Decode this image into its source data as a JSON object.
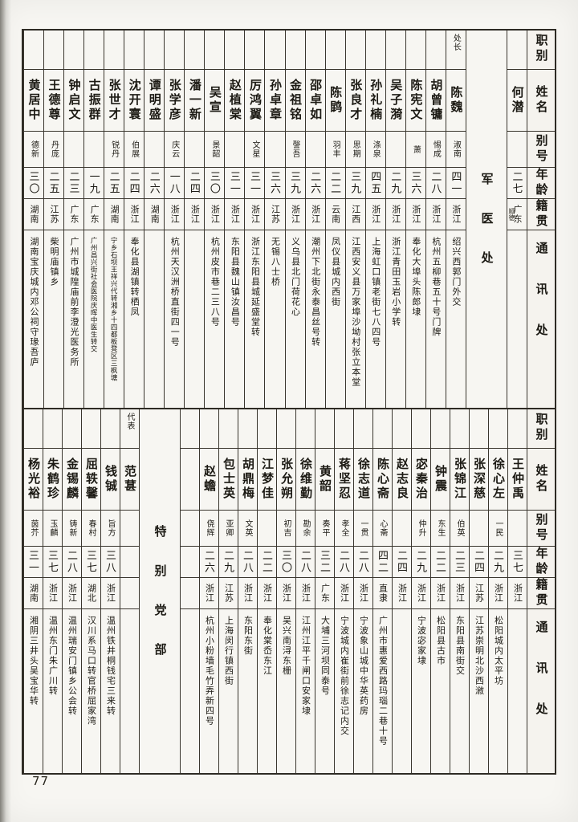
{
  "page": {
    "number": "77"
  },
  "header_labels": [
    "职别",
    "姓名",
    "别号",
    "年龄",
    "籍贯",
    "通讯处"
  ],
  "tables": [
    {
      "name": "top",
      "columns": [
        {
          "type": "person",
          "role": "",
          "name": "何潜",
          "hao": "",
          "age": "二七",
          "native": "广东",
          "native_note": "顺德",
          "addr": ""
        },
        {
          "type": "section",
          "label": "军医处"
        },
        {
          "type": "person",
          "role": "处长",
          "name": "陈魏",
          "hao": "淑南",
          "age": "四一",
          "native": "浙江",
          "addr": "绍兴西郭门外交"
        },
        {
          "type": "person",
          "role": "",
          "name": "胡曾镛",
          "hao": "惕成",
          "age": "二八",
          "native": "浙江",
          "addr": "杭州五柳巷五十号门牌"
        },
        {
          "type": "person",
          "role": "",
          "name": "陈宪文",
          "hao": "萧",
          "age": "三六",
          "native": "浙江",
          "addr": "奉化大埠头陈郎埭"
        },
        {
          "type": "person",
          "role": "",
          "name": "吴子漪",
          "hao": "",
          "age": "二九",
          "native": "浙江",
          "addr": "浙江青田玉岩小学转"
        },
        {
          "type": "person",
          "role": "",
          "name": "孙礼楠",
          "hao": "涤泉",
          "age": "四五",
          "native": "浙江",
          "addr": "上海虹口镇老街七八四号"
        },
        {
          "type": "person",
          "role": "",
          "name": "张良才",
          "hao": "思期",
          "age": "三九",
          "native": "江西",
          "addr": "江西安义县万家埠沙坳村张立本堂"
        },
        {
          "type": "person",
          "role": "",
          "name": "陈鹍",
          "hao": "羽丰",
          "age": "二二",
          "native": "云南",
          "addr": "凤仪县城内西街"
        },
        {
          "type": "person",
          "role": "",
          "name": "邵卓如",
          "hao": "",
          "age": "二六",
          "native": "浙江",
          "addr": "潮州下北街永泰昌丝号转"
        },
        {
          "type": "person",
          "role": "",
          "name": "金祖铭",
          "hao": "謦吾",
          "age": "三九",
          "native": "浙江",
          "addr": "义乌县北门荷花心"
        },
        {
          "type": "person",
          "role": "",
          "name": "孙卓章",
          "hao": "",
          "age": "三六",
          "native": "江苏",
          "addr": "无锡八士桥"
        },
        {
          "type": "person",
          "role": "",
          "name": "厉鸿翼",
          "hao": "文星",
          "age": "三一",
          "native": "浙江",
          "addr": "浙江东阳县城延盛堂转"
        },
        {
          "type": "person",
          "role": "",
          "name": "赵植棠",
          "hao": "",
          "age": "三一",
          "native": "浙江",
          "addr": "东阳县魏山镇汝昌号"
        },
        {
          "type": "person",
          "role": "",
          "name": "吴宣",
          "hao": "景韶",
          "age": "三〇",
          "native": "浙江",
          "addr": "杭州皮市巷二三八号"
        },
        {
          "type": "person",
          "role": "",
          "name": "潘一新",
          "hao": "",
          "age": "二四",
          "native": "浙江",
          "addr": ""
        },
        {
          "type": "person",
          "role": "",
          "name": "张学彦",
          "hao": "庆云",
          "age": "一八",
          "native": "浙江",
          "addr": "杭州天汉洲桥直街四一号"
        },
        {
          "type": "person",
          "role": "",
          "name": "谭明盛",
          "hao": "",
          "age": "二六",
          "native": "湖南",
          "addr": ""
        },
        {
          "type": "person",
          "role": "",
          "name": "沈开寰",
          "hao": "伯展",
          "age": "二四",
          "native": "浙江",
          "addr": "奉化县湖镇转栖凤"
        },
        {
          "type": "person",
          "role": "",
          "name": "张世才",
          "hao": "锐丹",
          "age": "二五",
          "native": "湖南",
          "addr": "宁乡石坝王祥兴代转湘乡十四都板凳区三枫塘",
          "addr_small": true
        },
        {
          "type": "person",
          "role": "",
          "name": "古振群",
          "hao": "",
          "age": "一九",
          "native": "广东",
          "addr": "广州昌兴街社会医院庆晖中医生转交",
          "addr_small": true
        },
        {
          "type": "person",
          "role": "",
          "name": "钟启文",
          "hao": "",
          "age": "二三",
          "native": "广东",
          "addr": "广州市城隍庙前李澄光医务所"
        },
        {
          "type": "person",
          "role": "",
          "name": "王德尊",
          "hao": "丹庞",
          "age": "二五",
          "native": "江苏",
          "addr": "柴明庙镇乡"
        },
        {
          "type": "person",
          "role": "",
          "name": "黄居中",
          "hao": "德新",
          "age": "三〇",
          "native": "湖南",
          "addr": "湖南宝庆城内邓公祠守瑑吾庐"
        }
      ]
    },
    {
      "name": "bottom",
      "columns": [
        {
          "type": "person",
          "role": "",
          "name": "王仲禹",
          "hao": "",
          "age": "三七",
          "native": "浙江",
          "addr": ""
        },
        {
          "type": "person",
          "role": "",
          "name": "徐心左",
          "hao": "一民",
          "age": "二九",
          "native": "浙江",
          "addr": "松阳城内太平坊"
        },
        {
          "type": "person",
          "role": "",
          "name": "张深慈",
          "hao": "",
          "age": "二四",
          "native": "江苏",
          "addr": "江苏崇明北沙西漵"
        },
        {
          "type": "person",
          "role": "",
          "name": "张锦江",
          "hao": "伯英",
          "age": "二三",
          "native": "浙江",
          "addr": "东阳县南街交"
        },
        {
          "type": "person",
          "role": "",
          "name": "钟震",
          "hao": "东生",
          "age": "二二",
          "native": "浙江",
          "addr": "松阳县古市"
        },
        {
          "type": "person",
          "role": "",
          "name": "宓秦治",
          "hao": "仲升",
          "age": "二九",
          "native": "浙江",
          "addr": "宁波宓家埭"
        },
        {
          "type": "person",
          "role": "",
          "name": "赵志良",
          "hao": "",
          "age": "二四",
          "native": "浙江",
          "addr": ""
        },
        {
          "type": "person",
          "role": "",
          "name": "陈心斋",
          "hao": "心斋",
          "age": "四二",
          "native": "直隶",
          "addr": "广州市惠爱西路玛瑙二巷十号"
        },
        {
          "type": "person",
          "role": "",
          "name": "徐志道",
          "hao": "一贯",
          "age": "二八",
          "native": "浙江",
          "addr": "宁波象山城中华英药房"
        },
        {
          "type": "person",
          "role": "",
          "name": "蒋坚忍",
          "hao": "孝全",
          "age": "二八",
          "native": "浙江",
          "addr": "宁波城内崔街前徐志记内交"
        },
        {
          "type": "person",
          "role": "",
          "name": "黄韶",
          "hao": "奏平",
          "age": "三二",
          "native": "广东",
          "addr": "大埔三河坝同泰号"
        },
        {
          "type": "person",
          "role": "",
          "name": "徐维勤",
          "hao": "勘余",
          "age": "二八",
          "native": "浙江",
          "addr": "江州江平千闸口安家埭"
        },
        {
          "type": "person",
          "role": "",
          "name": "张允朔",
          "hao": "初吉",
          "age": "三〇",
          "native": "浙江",
          "addr": "吴兴南浔东栅"
        },
        {
          "type": "person",
          "role": "",
          "name": "江梦佳",
          "hao": "",
          "age": "二二",
          "native": "浙江",
          "addr": "奉化棠岙东江"
        },
        {
          "type": "person",
          "role": "",
          "name": "胡鼎梅",
          "hao": "文英",
          "age": "二八",
          "native": "浙江",
          "addr": "东阳东街"
        },
        {
          "type": "person",
          "role": "",
          "name": "包士英",
          "hao": "亚卿",
          "age": "二九",
          "native": "江苏",
          "addr": "上海闵行镇西街"
        },
        {
          "type": "person",
          "role": "",
          "name": "赵蟾",
          "hao": "侥辉",
          "age": "二六",
          "native": "浙江",
          "addr": "杭州小粉墙毛竹弄新四号"
        },
        {
          "type": "person",
          "role": "",
          "name": "",
          "hao": "",
          "age": "",
          "native": "",
          "addr": ""
        },
        {
          "type": "section",
          "label": "特别党部"
        },
        {
          "type": "person",
          "role": "代表",
          "name": "范葚",
          "hao": "",
          "age": "",
          "native": "",
          "addr": ""
        },
        {
          "type": "person",
          "role": "",
          "name": "钱铖",
          "hao": "旨方",
          "age": "三八",
          "native": "浙江",
          "addr": "温州铁井桐钱宅三来转"
        },
        {
          "type": "person",
          "role": "",
          "name": "屈轶馨",
          "hao": "春村",
          "age": "三七",
          "native": "湖北",
          "addr": "汉川系马口转官桥屈家湾"
        },
        {
          "type": "person",
          "role": "",
          "name": "金锡麟",
          "hao": "铸新",
          "age": "二八",
          "native": "浙江",
          "addr": "温州瑞安门镇乡公会转"
        },
        {
          "type": "person",
          "role": "",
          "name": "朱鹤珍",
          "hao": "玉麟",
          "age": "三七",
          "native": "浙江",
          "addr": "温州东门朱广川转"
        },
        {
          "type": "person",
          "role": "",
          "name": "杨光裕",
          "hao": "茵芥",
          "age": "三一",
          "native": "湖南",
          "addr": "湘阴三井头吴宝华转"
        }
      ]
    }
  ],
  "marks": {
    "pencil": "/"
  }
}
